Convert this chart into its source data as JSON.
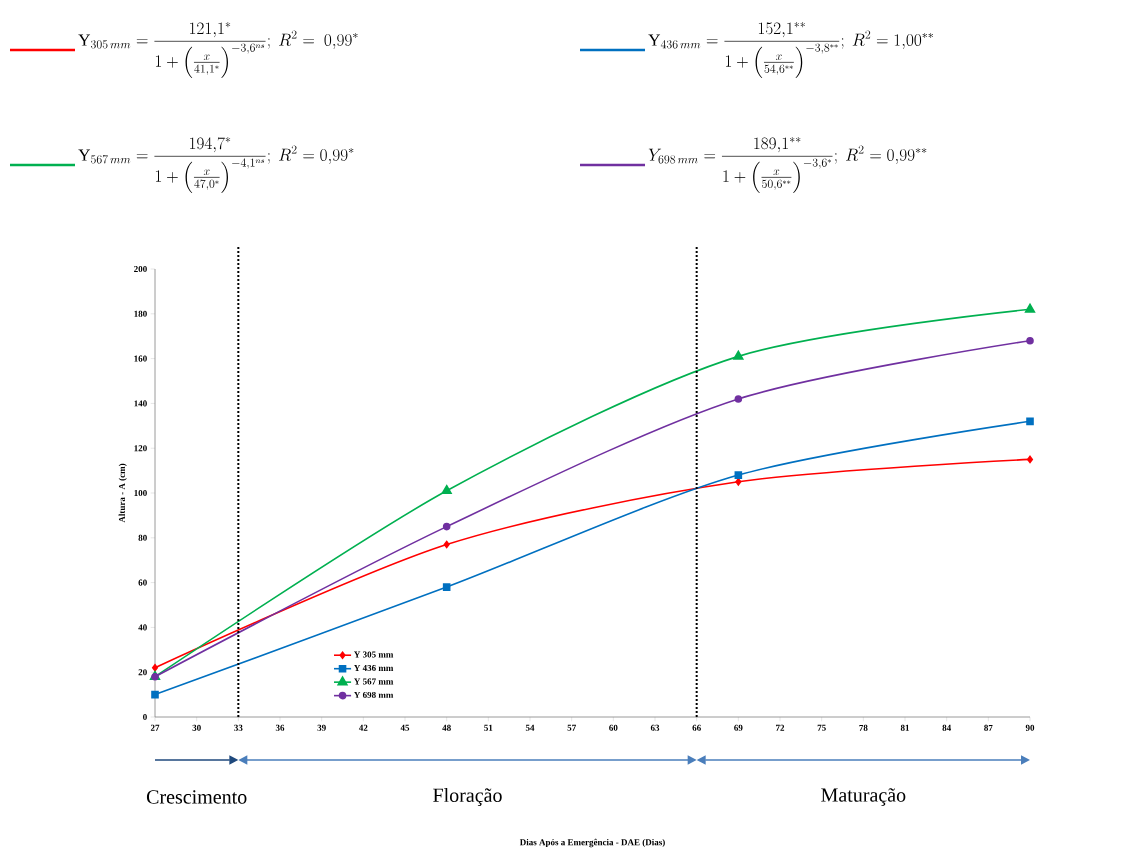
{
  "chart_data": {
    "type": "line",
    "ylabel": "Altura - A (cm)",
    "x": [
      27,
      48,
      69,
      90
    ],
    "xlim": [
      27,
      90
    ],
    "xticks": [
      27,
      30,
      33,
      36,
      39,
      42,
      45,
      48,
      51,
      54,
      57,
      60,
      63,
      66,
      69,
      72,
      75,
      78,
      81,
      84,
      87,
      90
    ],
    "ylim": [
      0,
      200
    ],
    "yticks": [
      0,
      20,
      40,
      60,
      80,
      100,
      120,
      140,
      160,
      180,
      200
    ],
    "legend": "bottom left",
    "series": [
      {
        "name": "Y 305 mm",
        "color": "#ff0000",
        "marker": "diamond",
        "values": [
          22,
          77,
          105,
          115
        ]
      },
      {
        "name": "Y 436 mm",
        "color": "#0070c0",
        "marker": "square",
        "values": [
          10,
          58,
          108,
          132
        ]
      },
      {
        "name": "Y 567 mm",
        "color": "#00b050",
        "marker": "triangle",
        "values": [
          18,
          101,
          161,
          182
        ]
      },
      {
        "name": "Y 698 mm",
        "color": "#7030a0",
        "marker": "circle",
        "values": [
          18,
          85,
          142,
          168
        ]
      }
    ],
    "ref_lines": [
      {
        "axis": "x",
        "value": 33,
        "line_style": "dotted",
        "color": "#000000"
      },
      {
        "axis": "x",
        "value": 66,
        "line_style": "dotted",
        "color": "#000000"
      }
    ],
    "annotations": [
      "\\mathrm{Y}_{305\\,mm} = \\frac{121{,}1^{*}}{1+\\left(\\frac{x}{41{,}1^{*}}\\right)^{-3{,}6^{ns}}};\\ R^{2} =\\ 0{,}99^{*}",
      "\\mathrm{Y}_{436\\,mm} = \\frac{152{,}1^{**}}{1+\\left(\\frac{x}{54{,}6^{**}}\\right)^{-3{,}8^{**}}};\\ R^{2} = 1{,}00^{**}",
      "\\mathrm{Y}_{567\\,mm} = \\frac{194{,}7^{*}}{1+\\left(\\frac{x}{47{,}0^{*}}\\right)^{-4{,}1^{ns}}};\\ R^{2} = 0{,}99^{*}",
      "Y_{698\\,mm} = \\frac{189{,}1^{**}}{1+\\left(\\frac{x}{50{,}6^{**}}\\right)^{-3{,}6^{*}}};\\ R^{2} = 0{,}99^{**}",
      "Crescimento",
      "Floração",
      "Maturação",
      "Dias Após a Emergência - DAE (Dias)"
    ]
  }
}
